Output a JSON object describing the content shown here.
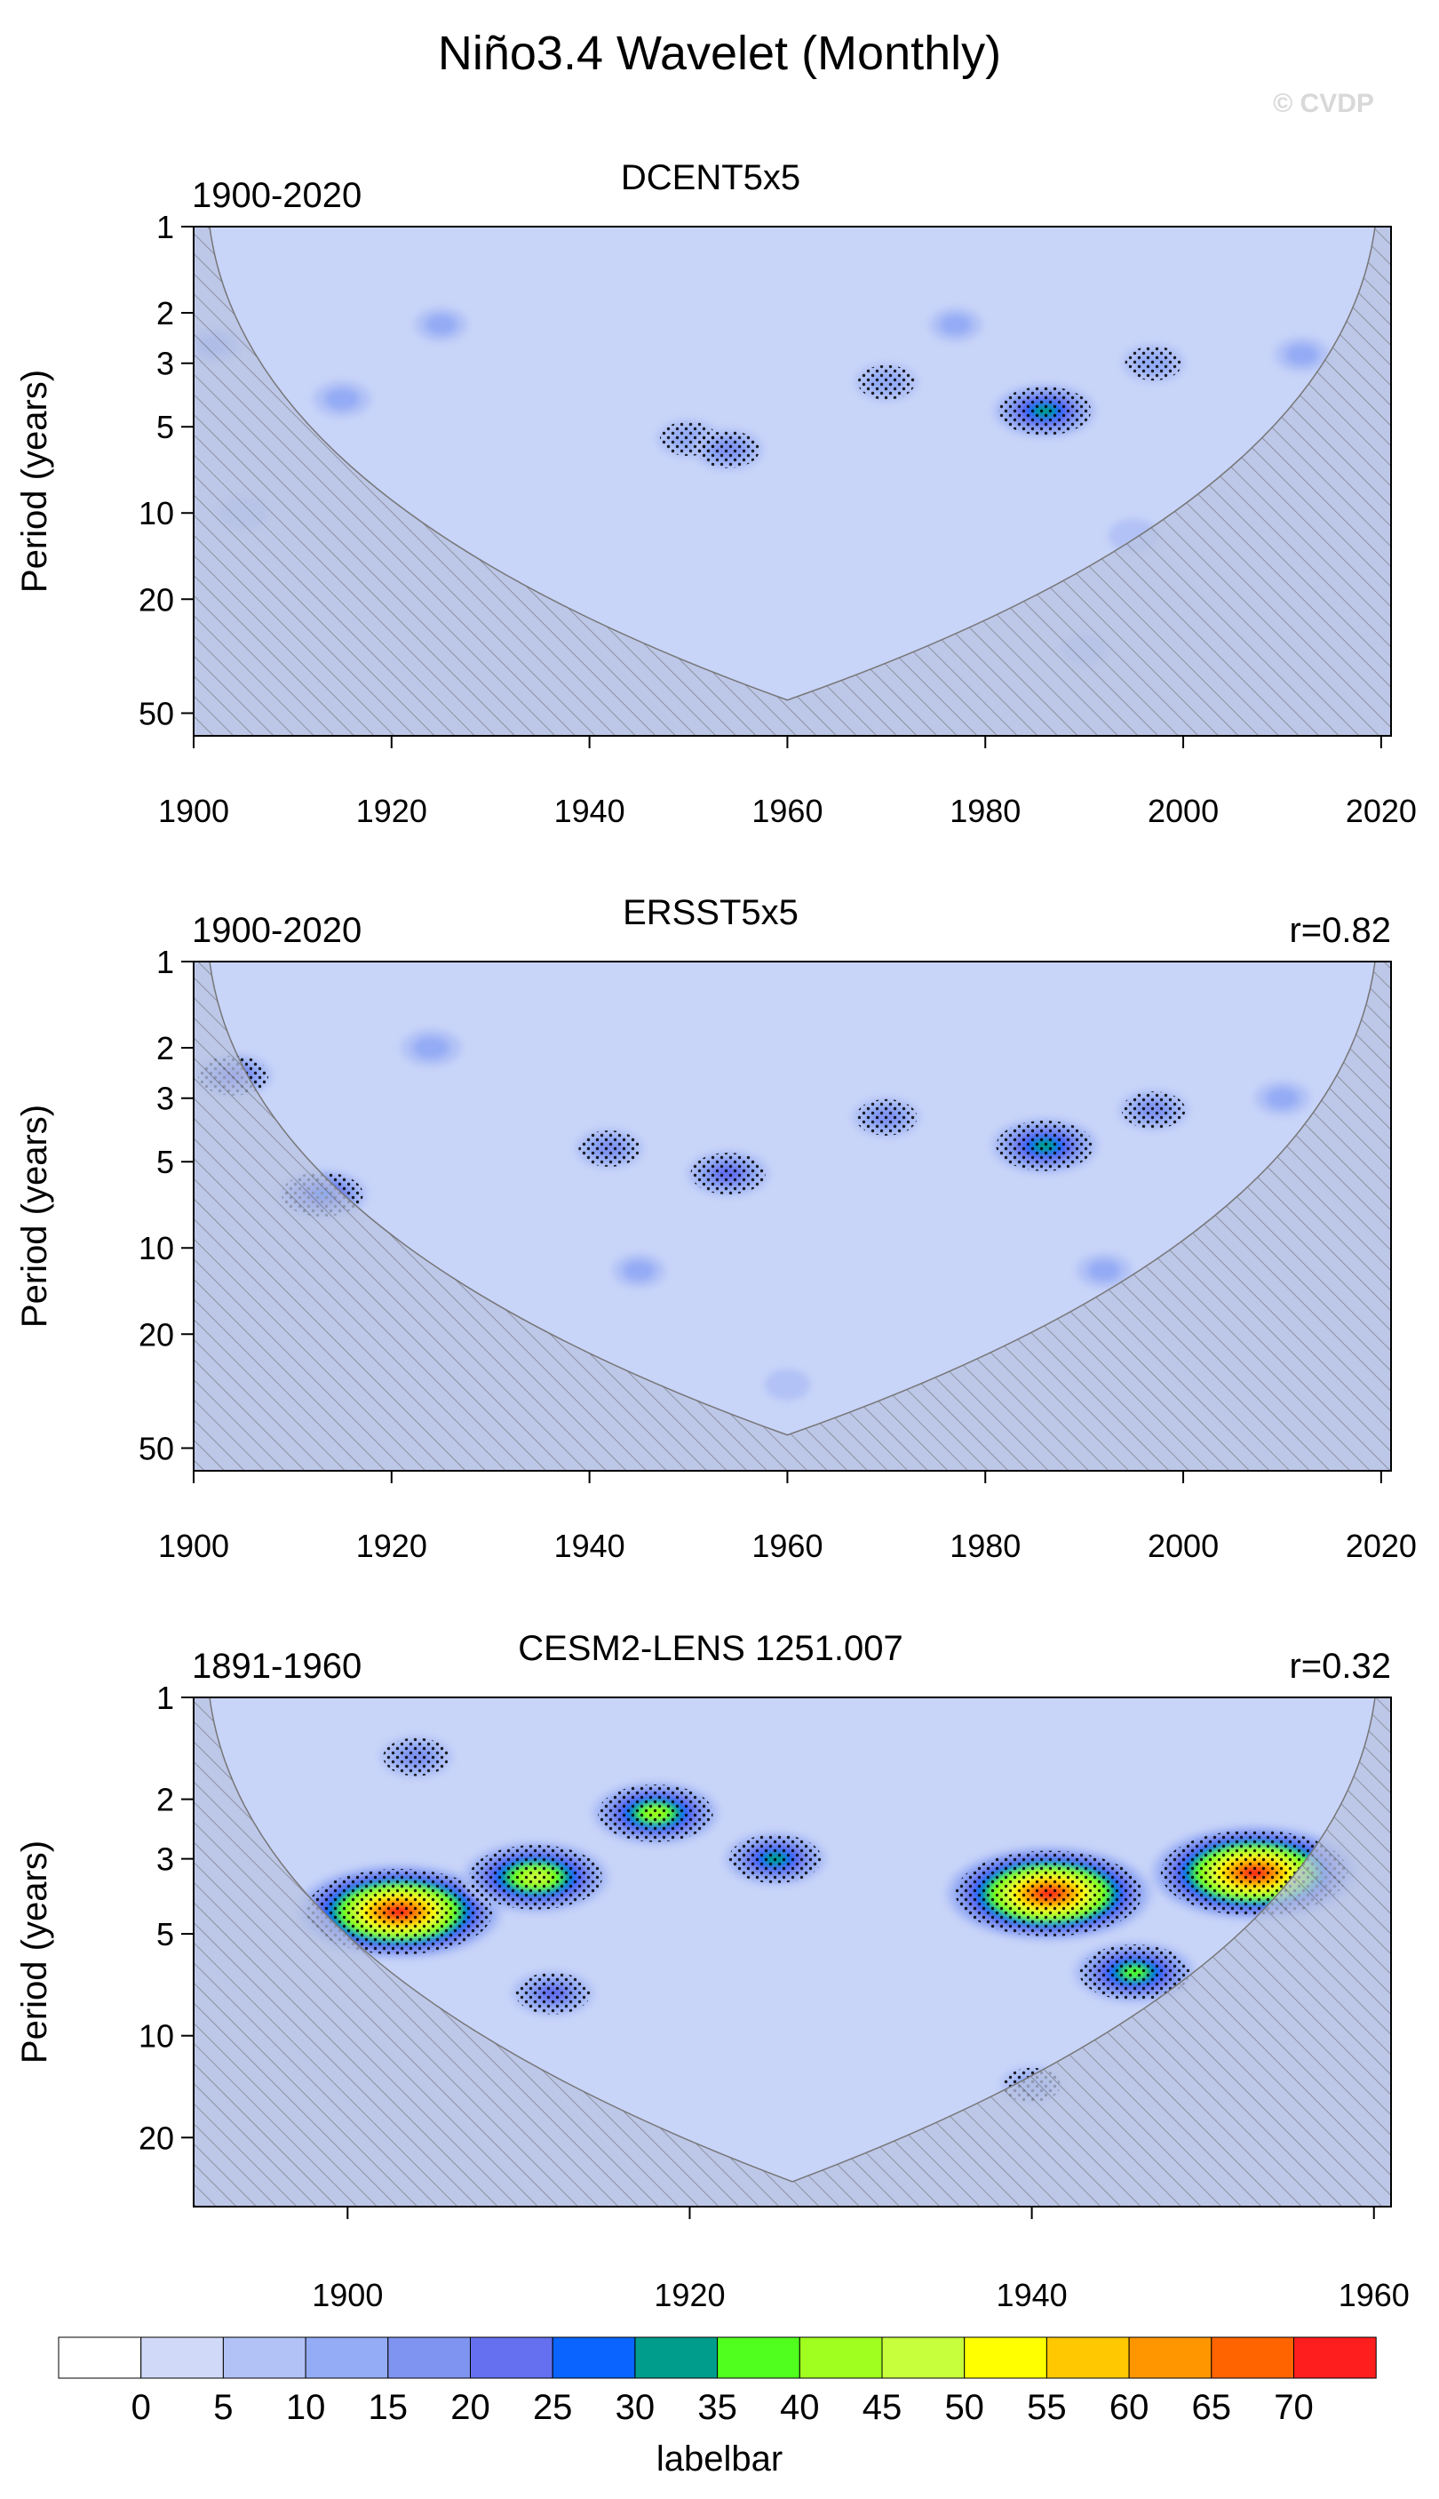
{
  "figure": {
    "title": "Niño3.4 Wavelet (Monthly)",
    "watermark": "© CVDP"
  },
  "colors": {
    "background_lowest": "#c8d4f8",
    "panel_border": "#000000",
    "hatch": "#666666",
    "coi_fill": "#b8c2e0"
  },
  "chart_data": [
    {
      "type": "heatmap",
      "title": "DCENT5x5",
      "period_label": "1900-2020",
      "corr_label": "",
      "ylabel": "Period (years)",
      "xlim": [
        1900,
        2021
      ],
      "ylim": [
        1,
        60
      ],
      "y_scale": "log",
      "y_ticks": [
        1,
        2,
        3,
        5,
        10,
        20,
        50
      ],
      "x_ticks": [
        1900,
        1920,
        1940,
        1960,
        1980,
        2000,
        2020
      ],
      "coi_apex": {
        "year": 1960,
        "period": 45
      },
      "power_regions": [
        {
          "year": 1902,
          "period": 2.6,
          "power": 11
        },
        {
          "year": 1915,
          "period": 4.0,
          "power": 12
        },
        {
          "year": 1925,
          "period": 2.2,
          "power": 10
        },
        {
          "year": 1950,
          "period": 5.5,
          "power": 14
        },
        {
          "year": 1954,
          "period": 6.0,
          "power": 17
        },
        {
          "year": 1970,
          "period": 3.5,
          "power": 14
        },
        {
          "year": 1977,
          "period": 2.2,
          "power": 10
        },
        {
          "year": 1986,
          "period": 4.4,
          "power": 30
        },
        {
          "year": 1997,
          "period": 3.0,
          "power": 14
        },
        {
          "year": 2012,
          "period": 2.8,
          "power": 11
        },
        {
          "year": 1995,
          "period": 12,
          "power": 9
        },
        {
          "year": 1905,
          "period": 10,
          "power": 9
        },
        {
          "year": 1990,
          "period": 30,
          "power": 7
        }
      ]
    },
    {
      "type": "heatmap",
      "title": "ERSST5x5",
      "period_label": "1900-2020",
      "corr_label": "r=0.82",
      "ylabel": "Period (years)",
      "xlim": [
        1900,
        2021
      ],
      "ylim": [
        1,
        60
      ],
      "y_scale": "log",
      "y_ticks": [
        1,
        2,
        3,
        5,
        10,
        20,
        50
      ],
      "x_ticks": [
        1900,
        1920,
        1940,
        1960,
        1980,
        2000,
        2020
      ],
      "coi_apex": {
        "year": 1960,
        "period": 45
      },
      "power_regions": [
        {
          "year": 1904,
          "period": 2.5,
          "power": 20
        },
        {
          "year": 1913,
          "period": 6.5,
          "power": 25
        },
        {
          "year": 1924,
          "period": 2.0,
          "power": 13
        },
        {
          "year": 1942,
          "period": 4.5,
          "power": 16
        },
        {
          "year": 1954,
          "period": 5.5,
          "power": 22
        },
        {
          "year": 1970,
          "period": 3.5,
          "power": 16
        },
        {
          "year": 1986,
          "period": 4.4,
          "power": 32
        },
        {
          "year": 1997,
          "period": 3.3,
          "power": 17
        },
        {
          "year": 2010,
          "period": 3.0,
          "power": 11
        },
        {
          "year": 1992,
          "period": 12,
          "power": 11
        },
        {
          "year": 1945,
          "period": 12,
          "power": 10
        },
        {
          "year": 1960,
          "period": 30,
          "power": 7
        }
      ]
    },
    {
      "type": "heatmap",
      "title": "CESM2-LENS 1251.007",
      "period_label": "1891-1960",
      "corr_label": "r=0.32",
      "ylabel": "Period (years)",
      "xlim": [
        1891,
        1961
      ],
      "ylim": [
        1,
        32
      ],
      "y_scale": "log",
      "y_ticks": [
        1,
        2,
        3,
        5,
        10,
        20
      ],
      "x_ticks": [
        1900,
        1920,
        1940,
        1960
      ],
      "coi_apex": {
        "year": 1926,
        "period": 27
      },
      "power_regions": [
        {
          "year": 1903,
          "period": 4.3,
          "power": 72
        },
        {
          "year": 1911,
          "period": 3.4,
          "power": 48
        },
        {
          "year": 1918,
          "period": 2.2,
          "power": 40
        },
        {
          "year": 1925,
          "period": 3.0,
          "power": 30
        },
        {
          "year": 1941,
          "period": 3.8,
          "power": 72
        },
        {
          "year": 1953,
          "period": 3.3,
          "power": 72
        },
        {
          "year": 1946,
          "period": 6.5,
          "power": 38
        },
        {
          "year": 1912,
          "period": 7.5,
          "power": 22
        },
        {
          "year": 1904,
          "period": 1.5,
          "power": 18
        },
        {
          "year": 1940,
          "period": 14,
          "power": 14
        }
      ]
    }
  ],
  "labelbar": {
    "title": "labelbar",
    "ticks": [
      "0",
      "5",
      "10",
      "15",
      "20",
      "25",
      "30",
      "35",
      "40",
      "45",
      "50",
      "55",
      "60",
      "65",
      "70"
    ],
    "colors": [
      "#ffffff",
      "#d0daf8",
      "#b2c2f6",
      "#94acf5",
      "#7f93f0",
      "#6470ef",
      "#0a64ff",
      "#009c8c",
      "#50ff1e",
      "#a0ff1e",
      "#c8ff3c",
      "#ffff00",
      "#ffc800",
      "#ff9600",
      "#ff6400",
      "#ff1e1e"
    ]
  }
}
